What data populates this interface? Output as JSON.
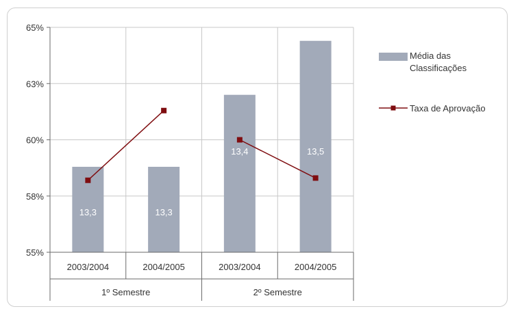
{
  "chart_data": {
    "type": "bar",
    "title": "",
    "xlabel": "",
    "ylabel": "",
    "groups": [
      {
        "label": "1º Semestre",
        "categories": [
          "2003/2004",
          "2004/2005"
        ]
      },
      {
        "label": "2º Semestre",
        "categories": [
          "2003/2004",
          "2004/2005"
        ]
      }
    ],
    "y_ticks": [
      "55%",
      "58%",
      "60%",
      "63%",
      "65%"
    ],
    "grid": true,
    "legend_position": "right",
    "series": [
      {
        "name": "Média das Classificações",
        "kind": "bar",
        "color": "#a2aab9",
        "values": [
          58.8,
          58.8,
          62.0,
          64.4
        ],
        "labels": [
          "13,3",
          "13,3",
          "13,4",
          "13,5"
        ]
      },
      {
        "name": "Taxa de Aprovação",
        "kind": "line",
        "color": "#7f0d10",
        "values": [
          58.2,
          61.3,
          60.0,
          58.3
        ]
      }
    ]
  },
  "legend": {
    "bar_line1": "Média das",
    "bar_line2": "Classificações",
    "line_label": "Taxa de Aprovação"
  }
}
